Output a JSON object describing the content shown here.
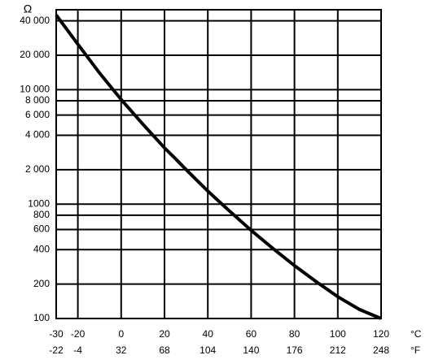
{
  "chart_data": {
    "type": "line",
    "unit_y": "Ω",
    "unit_x": "°C",
    "unit_x2": "°F",
    "x": [
      -30,
      -20,
      -10,
      0,
      10,
      20,
      25,
      30,
      40,
      50,
      60,
      70,
      80,
      90,
      100,
      110,
      120
    ],
    "series": [
      {
        "color": "#000000",
        "values": [
          45000,
          25000,
          14000,
          8200,
          5000,
          3100,
          2500,
          2000,
          1300,
          870,
          590,
          410,
          290,
          210,
          155,
          120,
          100
        ]
      }
    ],
    "xlim": [
      -30,
      120
    ],
    "xticks": [
      -30,
      -20,
      0,
      20,
      40,
      60,
      80,
      100,
      120
    ],
    "x2ticks": [
      -22,
      -4,
      32,
      68,
      104,
      140,
      176,
      212,
      248
    ],
    "ylim": [
      100,
      50000
    ],
    "log_y": true,
    "grid": true,
    "yticks": [
      100,
      200,
      400,
      600,
      800,
      1000,
      {
        "value": 2000,
        "label": "2 000"
      },
      {
        "value": 4000,
        "label": "4 000"
      },
      {
        "value": 6000,
        "label": "6 000"
      },
      {
        "value": 8000,
        "label": "8 000"
      },
      {
        "value": 10000,
        "label": "10 000"
      },
      {
        "value": 20000,
        "label": "20 000"
      },
      {
        "value": 40000,
        "label": "40 000"
      }
    ]
  }
}
